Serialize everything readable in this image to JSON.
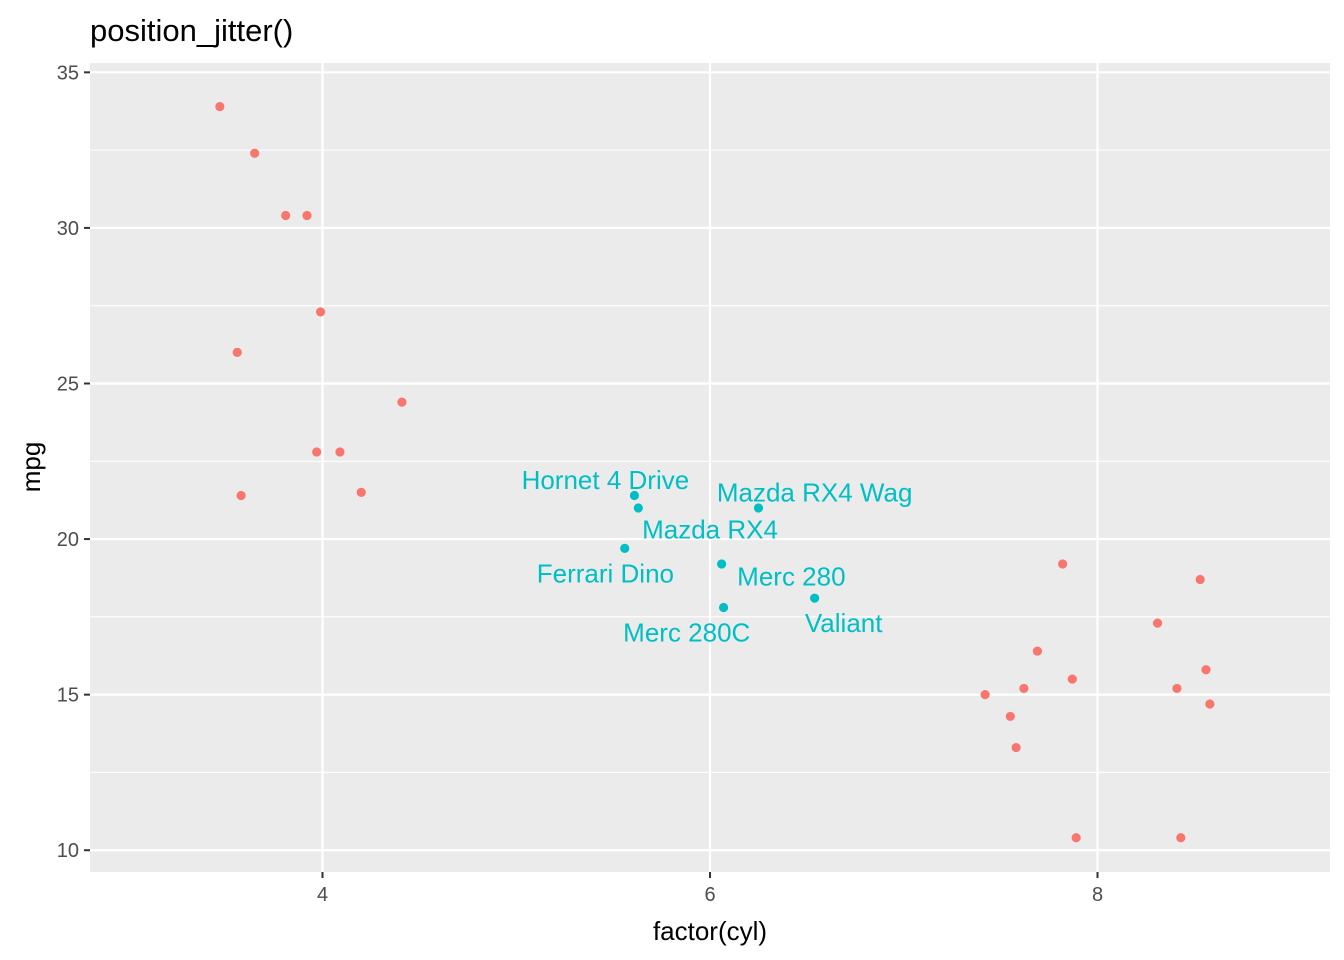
{
  "chart_data": {
    "type": "scatter",
    "title": "position_jitter()",
    "xlabel": "factor(cyl)",
    "ylabel": "mpg",
    "xlim": [
      2.8,
      9.2
    ],
    "ylim": [
      9.3,
      35.3
    ],
    "xticks": [
      4,
      6,
      8
    ],
    "yticks": [
      10,
      15,
      20,
      25,
      30,
      35
    ],
    "grid": true,
    "legend": "none",
    "series": [
      {
        "color": "#F8766D",
        "points": [
          {
            "x": 3.47,
            "y": 33.9
          },
          {
            "x": 3.65,
            "y": 32.4
          },
          {
            "x": 3.81,
            "y": 30.4
          },
          {
            "x": 3.92,
            "y": 30.4
          },
          {
            "x": 3.99,
            "y": 27.3
          },
          {
            "x": 3.56,
            "y": 26.0
          },
          {
            "x": 4.41,
            "y": 24.4
          },
          {
            "x": 3.97,
            "y": 22.8
          },
          {
            "x": 4.09,
            "y": 22.8
          },
          {
            "x": 4.2,
            "y": 21.5
          },
          {
            "x": 3.58,
            "y": 21.4
          },
          {
            "x": 7.82,
            "y": 19.2
          },
          {
            "x": 8.53,
            "y": 18.7
          },
          {
            "x": 8.31,
            "y": 17.3
          },
          {
            "x": 7.69,
            "y": 16.4
          },
          {
            "x": 8.56,
            "y": 15.8
          },
          {
            "x": 7.87,
            "y": 15.5
          },
          {
            "x": 7.62,
            "y": 15.2
          },
          {
            "x": 8.41,
            "y": 15.2
          },
          {
            "x": 7.42,
            "y": 15.0
          },
          {
            "x": 8.58,
            "y": 14.7
          },
          {
            "x": 7.55,
            "y": 14.3
          },
          {
            "x": 7.58,
            "y": 13.3
          },
          {
            "x": 7.89,
            "y": 10.4
          },
          {
            "x": 8.43,
            "y": 10.4
          }
        ]
      },
      {
        "color": "#00BFC4",
        "points": [
          {
            "x": 5.61,
            "y": 21.4,
            "label": "Hornet 4 Drive",
            "lx": 5.46,
            "ly": 21.9
          },
          {
            "x": 5.63,
            "y": 21.0,
            "label": "Mazda RX4",
            "lx": 6.0,
            "ly": 20.3
          },
          {
            "x": 6.25,
            "y": 21.0,
            "label": "Mazda RX4 Wag",
            "lx": 6.54,
            "ly": 21.5
          },
          {
            "x": 5.56,
            "y": 19.7,
            "label": "Ferrari Dino",
            "lx": 5.46,
            "ly": 18.9
          },
          {
            "x": 6.06,
            "y": 19.2,
            "label": "Merc 280",
            "lx": 6.42,
            "ly": 18.8
          },
          {
            "x": 6.07,
            "y": 17.8,
            "label": "Merc 280C",
            "lx": 5.88,
            "ly": 17.0
          },
          {
            "x": 6.54,
            "y": 18.1,
            "label": "Valiant",
            "lx": 6.69,
            "ly": 17.3
          }
        ]
      }
    ]
  }
}
